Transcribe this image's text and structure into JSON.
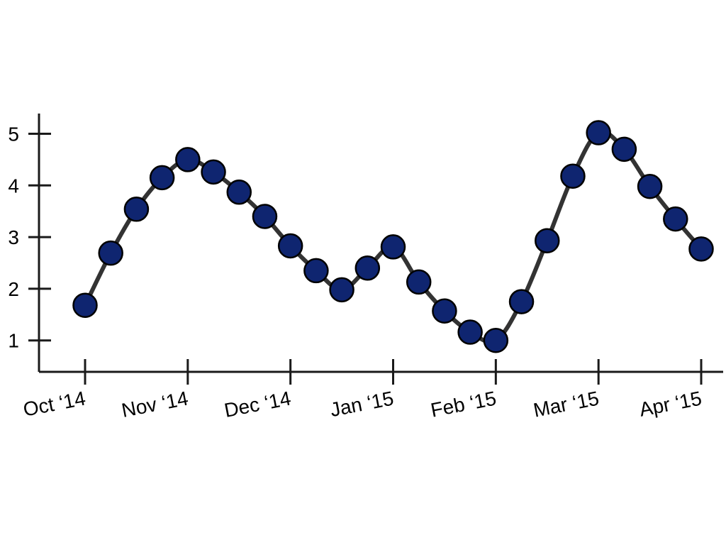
{
  "chart_data": {
    "type": "line",
    "title": "",
    "xlabel": "",
    "ylabel": "",
    "categories": [
      "Oct '14",
      "Nov '14",
      "Dec '14",
      "Jan '15",
      "Feb '15",
      "Mar '15",
      "Apr '15"
    ],
    "x_tick_labels": [
      "Oct ‘14",
      "Nov ‘14",
      "Dec ‘14",
      "Jan ‘15",
      "Feb ‘15",
      "Mar ‘15",
      "Apr ‘15"
    ],
    "y_ticks": [
      1,
      2,
      3,
      4,
      5
    ],
    "ylim": [
      0.45,
      5.4
    ],
    "xlim": [
      0,
      6
    ],
    "grid": false,
    "legend": "none",
    "line_smooth": true,
    "colors": {
      "line": "#333333",
      "marker_fill": "#0f2570",
      "marker_edge": "#000000",
      "axis": "#1a1a1a"
    },
    "series": [
      {
        "x": [
          0,
          0.25,
          0.5,
          0.75,
          1,
          1.25,
          1.5,
          1.75,
          2,
          2.25,
          2.5,
          2.75,
          3,
          3.25,
          3.5,
          3.75,
          4,
          4.25,
          4.5,
          4.75,
          5,
          5.25,
          5.5,
          5.75,
          6
        ],
        "values": [
          1.68,
          2.69,
          3.54,
          4.15,
          4.5,
          4.26,
          3.87,
          3.4,
          2.83,
          2.35,
          1.98,
          2.4,
          2.81,
          2.13,
          1.57,
          1.16,
          1.0,
          1.75,
          2.93,
          4.18,
          5.02,
          4.7,
          3.98,
          3.35,
          2.77
        ]
      }
    ]
  }
}
